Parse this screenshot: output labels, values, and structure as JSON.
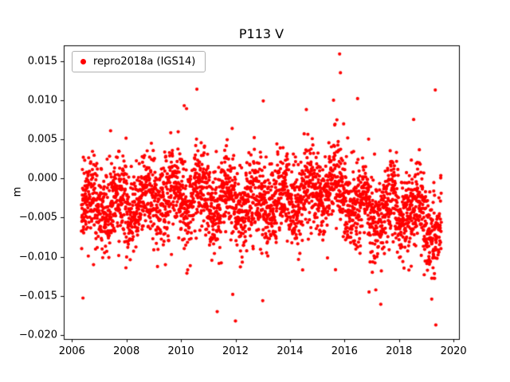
{
  "chart_data": {
    "type": "scatter",
    "title": "P113 V",
    "xlabel": "",
    "ylabel": "m",
    "grid": false,
    "legend": {
      "label": "repro2018a (IGS14)",
      "position": "upper-left",
      "marker_color": "#ff0000"
    },
    "marker": {
      "shape": "circle",
      "color": "#ff0000",
      "radius_px": 2.1
    },
    "xlim": [
      2005.7,
      2020.2
    ],
    "ylim": [
      -0.0205,
      0.017
    ],
    "xticks": [
      {
        "value": 2006,
        "label": "2006"
      },
      {
        "value": 2008,
        "label": "2008"
      },
      {
        "value": 2010,
        "label": "2010"
      },
      {
        "value": 2012,
        "label": "2012"
      },
      {
        "value": 2014,
        "label": "2014"
      },
      {
        "value": 2016,
        "label": "2016"
      },
      {
        "value": 2018,
        "label": "2018"
      },
      {
        "value": 2020,
        "label": "2020"
      }
    ],
    "yticks": [
      {
        "value": -0.02,
        "label": "−0.020"
      },
      {
        "value": -0.015,
        "label": "−0.015"
      },
      {
        "value": -0.01,
        "label": "−0.010"
      },
      {
        "value": -0.005,
        "label": "−0.005"
      },
      {
        "value": 0.0,
        "label": "0.000"
      },
      {
        "value": 0.005,
        "label": "0.005"
      },
      {
        "value": 0.01,
        "label": "0.010"
      },
      {
        "value": 0.015,
        "label": "0.015"
      }
    ],
    "series": [
      {
        "name": "repro2018a (IGS14)",
        "color": "#ff0000",
        "x_start": 2006.35,
        "x_end": 2019.55,
        "n_points": 3100,
        "mean": -0.0033,
        "noise_std": 0.0026,
        "seasonal_amplitude": 0.0016,
        "seasonal_phase": 0.45,
        "outlier_probability": 0.035,
        "outlier_scale": 0.006,
        "seed": 42,
        "mean_bumps": [
          {
            "center": 2015.4,
            "width": 1.0,
            "amp": 0.0022
          },
          {
            "center": 2010.3,
            "width": 0.8,
            "amp": 0.0012
          },
          {
            "center": 2017.0,
            "width": 0.7,
            "amp": -0.0015
          },
          {
            "center": 2019.3,
            "width": 0.4,
            "amp": -0.003
          }
        ],
        "notable_points": [
          {
            "x": 2015.82,
            "y": 0.0159
          },
          {
            "x": 2015.85,
            "y": 0.0135
          },
          {
            "x": 2019.33,
            "y": 0.0113
          },
          {
            "x": 2016.48,
            "y": 0.0102
          },
          {
            "x": 2013.02,
            "y": 0.0099
          },
          {
            "x": 2010.12,
            "y": 0.0093
          },
          {
            "x": 2014.6,
            "y": 0.0088
          },
          {
            "x": 2019.35,
            "y": -0.0187
          },
          {
            "x": 2012.0,
            "y": -0.0182
          },
          {
            "x": 2011.33,
            "y": -0.017
          },
          {
            "x": 2013.0,
            "y": -0.0156
          },
          {
            "x": 2019.2,
            "y": -0.0154
          },
          {
            "x": 2011.9,
            "y": -0.0148
          },
          {
            "x": 2016.9,
            "y": -0.0145
          }
        ]
      }
    ]
  }
}
